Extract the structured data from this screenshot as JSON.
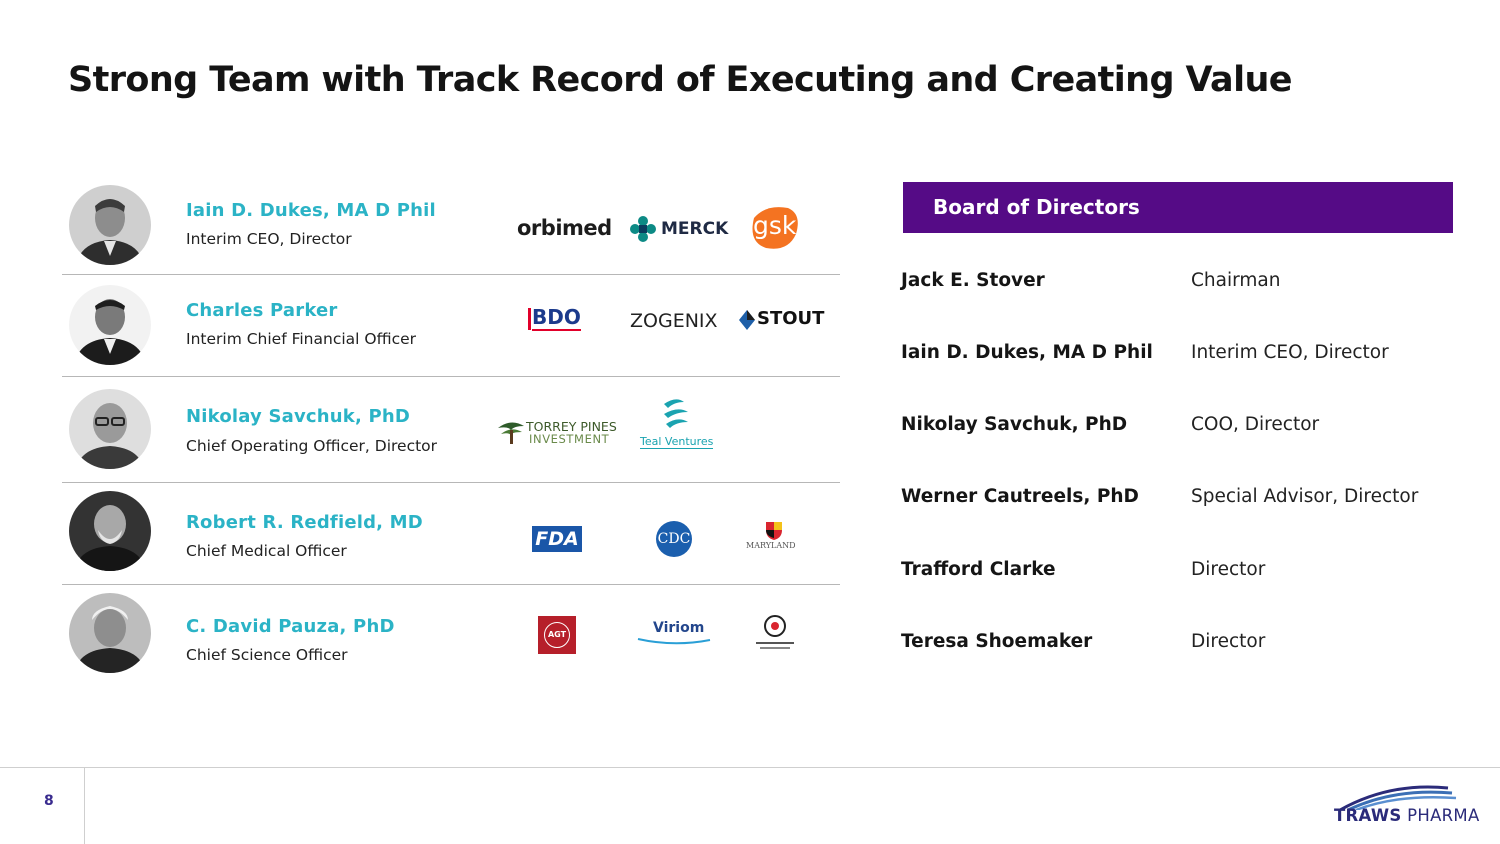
{
  "page": {
    "title": "Strong Team with Track Record of Executing and Creating Value",
    "number": "8"
  },
  "team": [
    {
      "name": "Iain D. Dukes, MA D Phil",
      "role": "Interim CEO, Director",
      "logos": [
        {
          "icon": "orbimed-logo",
          "text": "orbimed"
        },
        {
          "icon": "merck-logo",
          "text": "MERCK"
        },
        {
          "icon": "gsk-logo",
          "text": "gsk"
        }
      ]
    },
    {
      "name": "Charles Parker",
      "role": "Interim Chief Financial Officer",
      "logos": [
        {
          "icon": "bdo-logo",
          "text": "BDO"
        },
        {
          "icon": "zogenix-logo",
          "text": "ZOGENIX"
        },
        {
          "icon": "stout-logo",
          "text": "STOUT"
        }
      ]
    },
    {
      "name": "Nikolay Savchuk, PhD",
      "role": "Chief Operating Officer, Director",
      "logos": [
        {
          "icon": "torrey-pines-logo",
          "text": "TORREY PINES",
          "sub": "INVESTMENT"
        },
        {
          "icon": "teal-ventures-logo",
          "text": "Teal Ventures"
        }
      ]
    },
    {
      "name": "Robert R. Redfield, MD",
      "role": "Chief Medical Officer",
      "logos": [
        {
          "icon": "fda-logo",
          "text": "FDA"
        },
        {
          "icon": "cdc-logo",
          "text": "CDC"
        },
        {
          "icon": "university-of-maryland-logo",
          "text": "MARYLAND"
        }
      ]
    },
    {
      "name": "C. David Pauza, PhD",
      "role": "Chief Science Officer",
      "logos": [
        {
          "icon": "agt-logo",
          "text": "AGT"
        },
        {
          "icon": "viriom-logo",
          "text": "Viriom"
        },
        {
          "icon": "institute-of-human-virology-logo",
          "text": ""
        }
      ]
    }
  ],
  "board": {
    "header": "Board of Directors",
    "members": [
      {
        "name": "Jack E. Stover",
        "role": "Chairman"
      },
      {
        "name": "Iain D. Dukes,  MA D Phil",
        "role": "Interim CEO, Director"
      },
      {
        "name": "Nikolay Savchuk, PhD",
        "role": "COO, Director"
      },
      {
        "name": "Werner Cautreels, PhD",
        "role": "Special Advisor, Director"
      },
      {
        "name": "Trafford Clarke",
        "role": "Director"
      },
      {
        "name": "Teresa Shoemaker",
        "role": "Director"
      }
    ]
  },
  "brand": {
    "word1": "TRAWS",
    "word2": "PHARMA",
    "icon": "traws-pharma-logo"
  },
  "colors": {
    "accent": "#2bb3c6",
    "board_header": "#550b86",
    "brand": "#2b2b7a"
  }
}
